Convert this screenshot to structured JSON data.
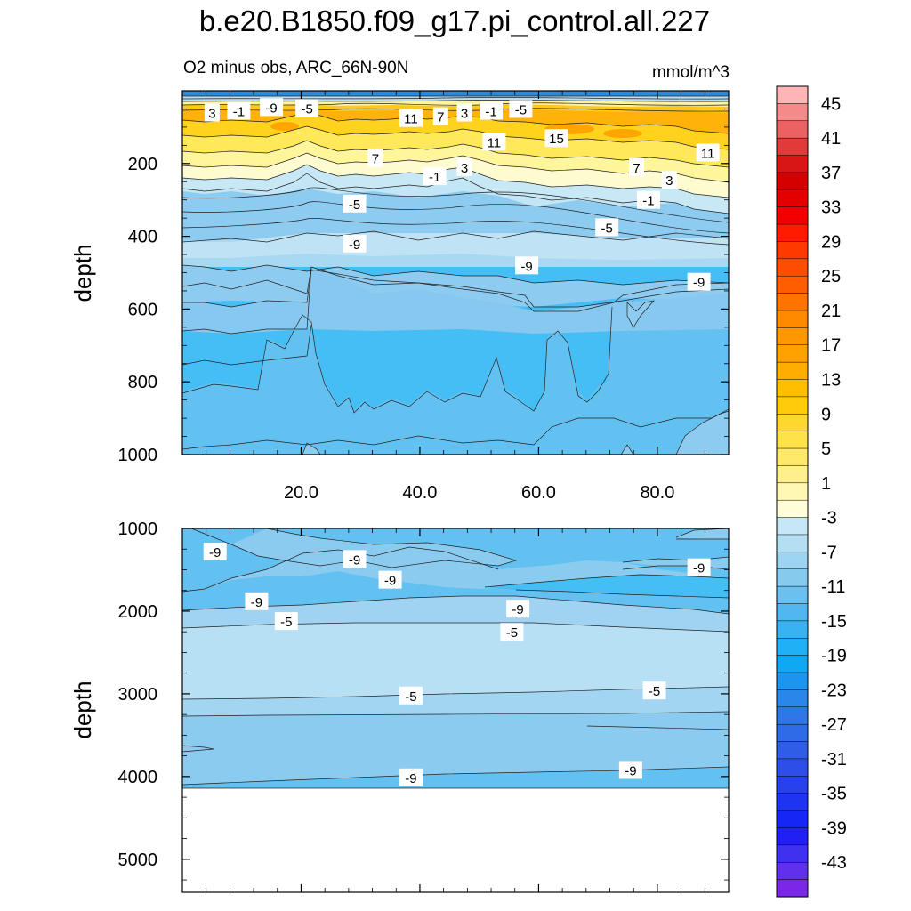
{
  "chart_data": {
    "type": "heatmap",
    "title": "b.e20.B1850.f09_g17.pi_control.all.227",
    "subtitle_left": "O2 minus obs, ARC_66N-90N",
    "units": "mmol/m^3",
    "colorbar": {
      "labels": [
        "45",
        "41",
        "37",
        "33",
        "29",
        "25",
        "21",
        "17",
        "13",
        "9",
        "5",
        "1",
        "-3",
        "-7",
        "-11",
        "-15",
        "-19",
        "-23",
        "-27",
        "-31",
        "-35",
        "-39",
        "-43"
      ],
      "levels": [
        45,
        41,
        37,
        33,
        29,
        25,
        21,
        17,
        13,
        9,
        5,
        1,
        -3,
        -7,
        -11,
        -15,
        -19,
        -23,
        -27,
        -31,
        -35,
        -39,
        -43
      ]
    },
    "panels": [
      {
        "name": "upper",
        "ylabel": "depth",
        "ylim": [
          0,
          1000
        ],
        "y_ticks": [
          "200",
          "400",
          "600",
          "800",
          "1000"
        ],
        "y_tick_values": [
          200,
          400,
          600,
          800,
          1000
        ],
        "xlim": [
          0,
          92
        ],
        "x_ticks": [
          "20.0",
          "40.0",
          "60.0",
          "80.0"
        ],
        "x_tick_values": [
          20,
          40,
          60,
          80
        ],
        "contour_labels": [
          {
            "text": "3",
            "x": 5,
            "y": 60
          },
          {
            "text": "-1",
            "x": 9.5,
            "y": 55
          },
          {
            "text": "-9",
            "x": 15,
            "y": 45
          },
          {
            "text": "-5",
            "x": 21,
            "y": 48
          },
          {
            "text": "11",
            "x": 38.5,
            "y": 75
          },
          {
            "text": "7",
            "x": 43.5,
            "y": 70
          },
          {
            "text": "3",
            "x": 47.5,
            "y": 60
          },
          {
            "text": "-1",
            "x": 52,
            "y": 55
          },
          {
            "text": "-5",
            "x": 57,
            "y": 50
          },
          {
            "text": "11",
            "x": 52.5,
            "y": 140
          },
          {
            "text": "15",
            "x": 63,
            "y": 130
          },
          {
            "text": "11",
            "x": 88.5,
            "y": 170
          },
          {
            "text": "7",
            "x": 32.5,
            "y": 185
          },
          {
            "text": "3",
            "x": 47.5,
            "y": 210
          },
          {
            "text": "-1",
            "x": 42.5,
            "y": 235
          },
          {
            "text": "7",
            "x": 76.5,
            "y": 210
          },
          {
            "text": "3",
            "x": 82,
            "y": 245
          },
          {
            "text": "-1",
            "x": 78.5,
            "y": 300
          },
          {
            "text": "-5",
            "x": 29,
            "y": 310
          },
          {
            "text": "-5",
            "x": 71.5,
            "y": 375
          },
          {
            "text": "-9",
            "x": 29,
            "y": 420
          },
          {
            "text": "-9",
            "x": 58,
            "y": 480
          },
          {
            "text": "-9",
            "x": 87,
            "y": 525
          }
        ]
      },
      {
        "name": "lower",
        "ylabel": "depth",
        "ylim": [
          1000,
          5400
        ],
        "y_ticks": [
          "1000",
          "2000",
          "3000",
          "4000",
          "5000"
        ],
        "y_tick_values": [
          1000,
          2000,
          3000,
          4000,
          5000
        ],
        "xlim": [
          0,
          92
        ],
        "contour_labels": [
          {
            "text": "-9",
            "x": 5.5,
            "y": 1280
          },
          {
            "text": "-9",
            "x": 29,
            "y": 1370
          },
          {
            "text": "-9",
            "x": 35,
            "y": 1620
          },
          {
            "text": "-9",
            "x": 12.5,
            "y": 1880
          },
          {
            "text": "-5",
            "x": 17.5,
            "y": 2120
          },
          {
            "text": "-9",
            "x": 56.5,
            "y": 1970
          },
          {
            "text": "-5",
            "x": 55.5,
            "y": 2250
          },
          {
            "text": "-9",
            "x": 87,
            "y": 1470
          },
          {
            "text": "-5",
            "x": 38.5,
            "y": 3020
          },
          {
            "text": "-5",
            "x": 79.5,
            "y": 2960
          },
          {
            "text": "-9",
            "x": 38.5,
            "y": 4010
          },
          {
            "text": "-9",
            "x": 75.5,
            "y": 3920
          }
        ]
      }
    ]
  }
}
